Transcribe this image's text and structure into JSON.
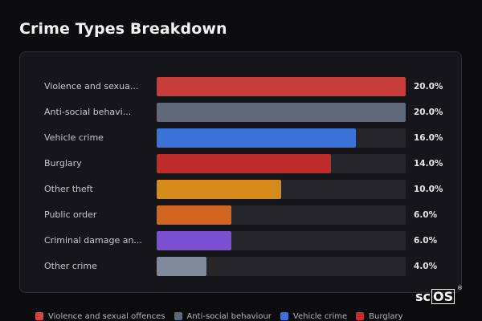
{
  "chart_data": {
    "type": "bar",
    "orientation": "horizontal",
    "title": "Crime Types Breakdown",
    "xlim": [
      0,
      20
    ],
    "categories": [
      "Violence and sexua...",
      "Anti-social behavi...",
      "Vehicle crime",
      "Burglary",
      "Other theft",
      "Public order",
      "Criminal damage an...",
      "Other crime"
    ],
    "values": [
      20.0,
      20.0,
      16.0,
      14.0,
      10.0,
      6.0,
      6.0,
      4.0
    ],
    "value_labels": [
      "20.0%",
      "20.0%",
      "16.0%",
      "14.0%",
      "10.0%",
      "6.0%",
      "6.0%",
      "4.0%"
    ],
    "colors": [
      "#c93c3c",
      "#5f6878",
      "#3a72d8",
      "#bf2a2a",
      "#d68a1a",
      "#d06420",
      "#7a4fd0",
      "#7f8a9c"
    ],
    "legend": [
      {
        "label": "Violence and sexual offences",
        "color": "#d64545"
      },
      {
        "label": "Anti-social behaviour",
        "color": "#5f6878"
      },
      {
        "label": "Vehicle crime",
        "color": "#3a72d8"
      },
      {
        "label": "Burglary",
        "color": "#c62f2f"
      }
    ],
    "legend_position": "bottom-left",
    "grid": false
  },
  "logo": {
    "prefix": "sc",
    "boxed": "OS",
    "mark": "®"
  }
}
